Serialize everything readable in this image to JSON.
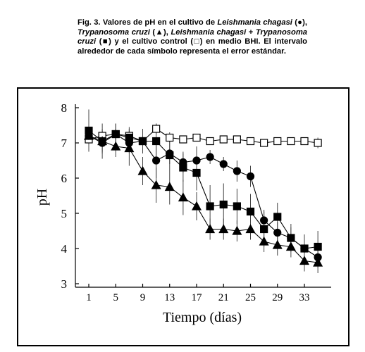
{
  "chart_data": {
    "type": "line",
    "caption": [
      "Fig. 3. Valores de pH en el cultivo de ",
      "Leishmania chagasi",
      " (●), ",
      "Trypanosoma cruzi",
      " (▲),  ",
      "Leishmania chagasi",
      " + ",
      "Trypanosoma cruzi",
      " (■) y el cultivo control (□) en medio BHI. El intervalo alrededor de cada símbolo representa el error estándar."
    ],
    "x_label": "Tiempo (días)",
    "y_label": "pH",
    "x": [
      1,
      3,
      5,
      7,
      9,
      11,
      13,
      15,
      17,
      19,
      21,
      23,
      25,
      27,
      29,
      31,
      33,
      35
    ],
    "xlim": [
      -1,
      37
    ],
    "xticks": [
      1,
      5,
      9,
      13,
      17,
      21,
      25,
      29,
      33
    ],
    "ylim": [
      3,
      8
    ],
    "yticks": [
      3,
      4,
      5,
      6,
      7,
      8
    ],
    "series": [
      {
        "name": "Control",
        "marker": "square-open",
        "color": "#000000",
        "values": [
          7.1,
          7.2,
          7.25,
          7.2,
          7.05,
          7.4,
          7.15,
          7.1,
          7.15,
          7.05,
          7.1,
          7.1,
          7.05,
          7.0,
          7.05,
          7.05,
          7.05,
          7.0
        ],
        "errors": [
          0.15,
          0.2,
          0.15,
          0.2,
          0.15,
          0.15,
          0.15,
          0.1,
          0.1,
          0.1,
          0.1,
          0.1,
          0.1,
          0.1,
          0.1,
          0.1,
          0.1,
          0.15
        ]
      },
      {
        "name": "Leishmania chagasi",
        "marker": "circle",
        "color": "#000000",
        "values": [
          7.2,
          7.0,
          7.25,
          7.0,
          7.05,
          6.5,
          6.7,
          6.45,
          6.5,
          6.6,
          6.4,
          6.2,
          6.05,
          4.8,
          4.45,
          4.3,
          4.0,
          3.75
        ],
        "errors": [
          0.3,
          0.3,
          0.3,
          0.3,
          0.35,
          0.5,
          0.3,
          0.3,
          0.4,
          0.2,
          0.2,
          0.3,
          0.3,
          0.3,
          0.3,
          0.3,
          0.3,
          0.3
        ]
      },
      {
        "name": "Trypanosoma cruzi",
        "marker": "triangle",
        "color": "#000000",
        "values": [
          7.2,
          7.05,
          6.9,
          6.85,
          6.2,
          5.8,
          5.75,
          5.45,
          5.2,
          4.55,
          4.55,
          4.5,
          4.55,
          4.2,
          4.1,
          4.05,
          3.65,
          3.6
        ],
        "errors": [
          0.3,
          0.5,
          0.3,
          0.5,
          0.4,
          0.5,
          0.5,
          0.5,
          0.4,
          0.3,
          0.3,
          0.3,
          0.3,
          0.3,
          0.3,
          0.3,
          0.3,
          0.3
        ]
      },
      {
        "name": "Leishmania chagasi + Trypanosoma cruzi",
        "marker": "square",
        "color": "#000000",
        "values": [
          7.35,
          7.05,
          7.25,
          7.15,
          7.05,
          7.05,
          6.65,
          6.3,
          6.15,
          5.2,
          5.25,
          5.2,
          5.05,
          4.55,
          4.9,
          4.3,
          4.0,
          4.05
        ],
        "errors": [
          0.6,
          0.3,
          0.3,
          0.3,
          0.3,
          0.5,
          0.4,
          0.4,
          0.5,
          0.6,
          0.6,
          0.5,
          0.5,
          0.5,
          0.4,
          0.4,
          0.4,
          0.45
        ]
      }
    ]
  }
}
